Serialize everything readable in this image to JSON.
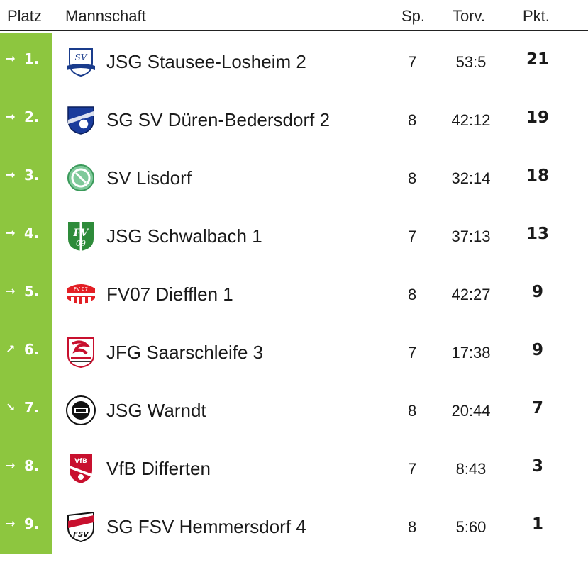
{
  "header": {
    "platz": "Platz",
    "mannschaft": "Mannschaft",
    "sp": "Sp.",
    "torv": "Torv.",
    "pkt": "Pkt."
  },
  "rows": [
    {
      "arrow": "→",
      "rank": "1.",
      "team": "JSG Stausee-Losheim 2",
      "sp": "7",
      "torv": "53:5",
      "pkt": "21",
      "logo": "sv-losheim-logo"
    },
    {
      "arrow": "→",
      "rank": "2.",
      "team": "SG SV Düren-Bedersdorf 2",
      "sp": "8",
      "torv": "42:12",
      "pkt": "19",
      "logo": "sv-dueren-logo"
    },
    {
      "arrow": "→",
      "rank": "3.",
      "team": "SV Lisdorf",
      "sp": "8",
      "torv": "32:14",
      "pkt": "18",
      "logo": "sv-lisdorf-logo"
    },
    {
      "arrow": "→",
      "rank": "4.",
      "team": "JSG Schwalbach 1",
      "sp": "7",
      "torv": "37:13",
      "pkt": "13",
      "logo": "fv09-logo"
    },
    {
      "arrow": "→",
      "rank": "5.",
      "team": "FV07 Diefflen 1",
      "sp": "8",
      "torv": "42:27",
      "pkt": "9",
      "logo": "fv07-logo"
    },
    {
      "arrow": "↗",
      "rank": "6.",
      "team": "JFG Saarschleife 3",
      "sp": "7",
      "torv": "17:38",
      "pkt": "9",
      "logo": "jfg-logo"
    },
    {
      "arrow": "↘",
      "rank": "7.",
      "team": "JSG Warndt",
      "sp": "8",
      "torv": "20:44",
      "pkt": "7",
      "logo": "warndt-logo"
    },
    {
      "arrow": "→",
      "rank": "8.",
      "team": "VfB Differten",
      "sp": "7",
      "torv": "8:43",
      "pkt": "3",
      "logo": "vfb-logo"
    },
    {
      "arrow": "→",
      "rank": "9.",
      "team": "SG FSV Hemmersdorf 4",
      "sp": "8",
      "torv": "5:60",
      "pkt": "1",
      "logo": "fsv-logo"
    }
  ],
  "logos": {
    "sv_text": "SV",
    "fv_letters": "FV",
    "fv_year": "09",
    "fv07_text": "FV 07",
    "vfb_text": "VfB",
    "fsv_text": "FSV"
  }
}
